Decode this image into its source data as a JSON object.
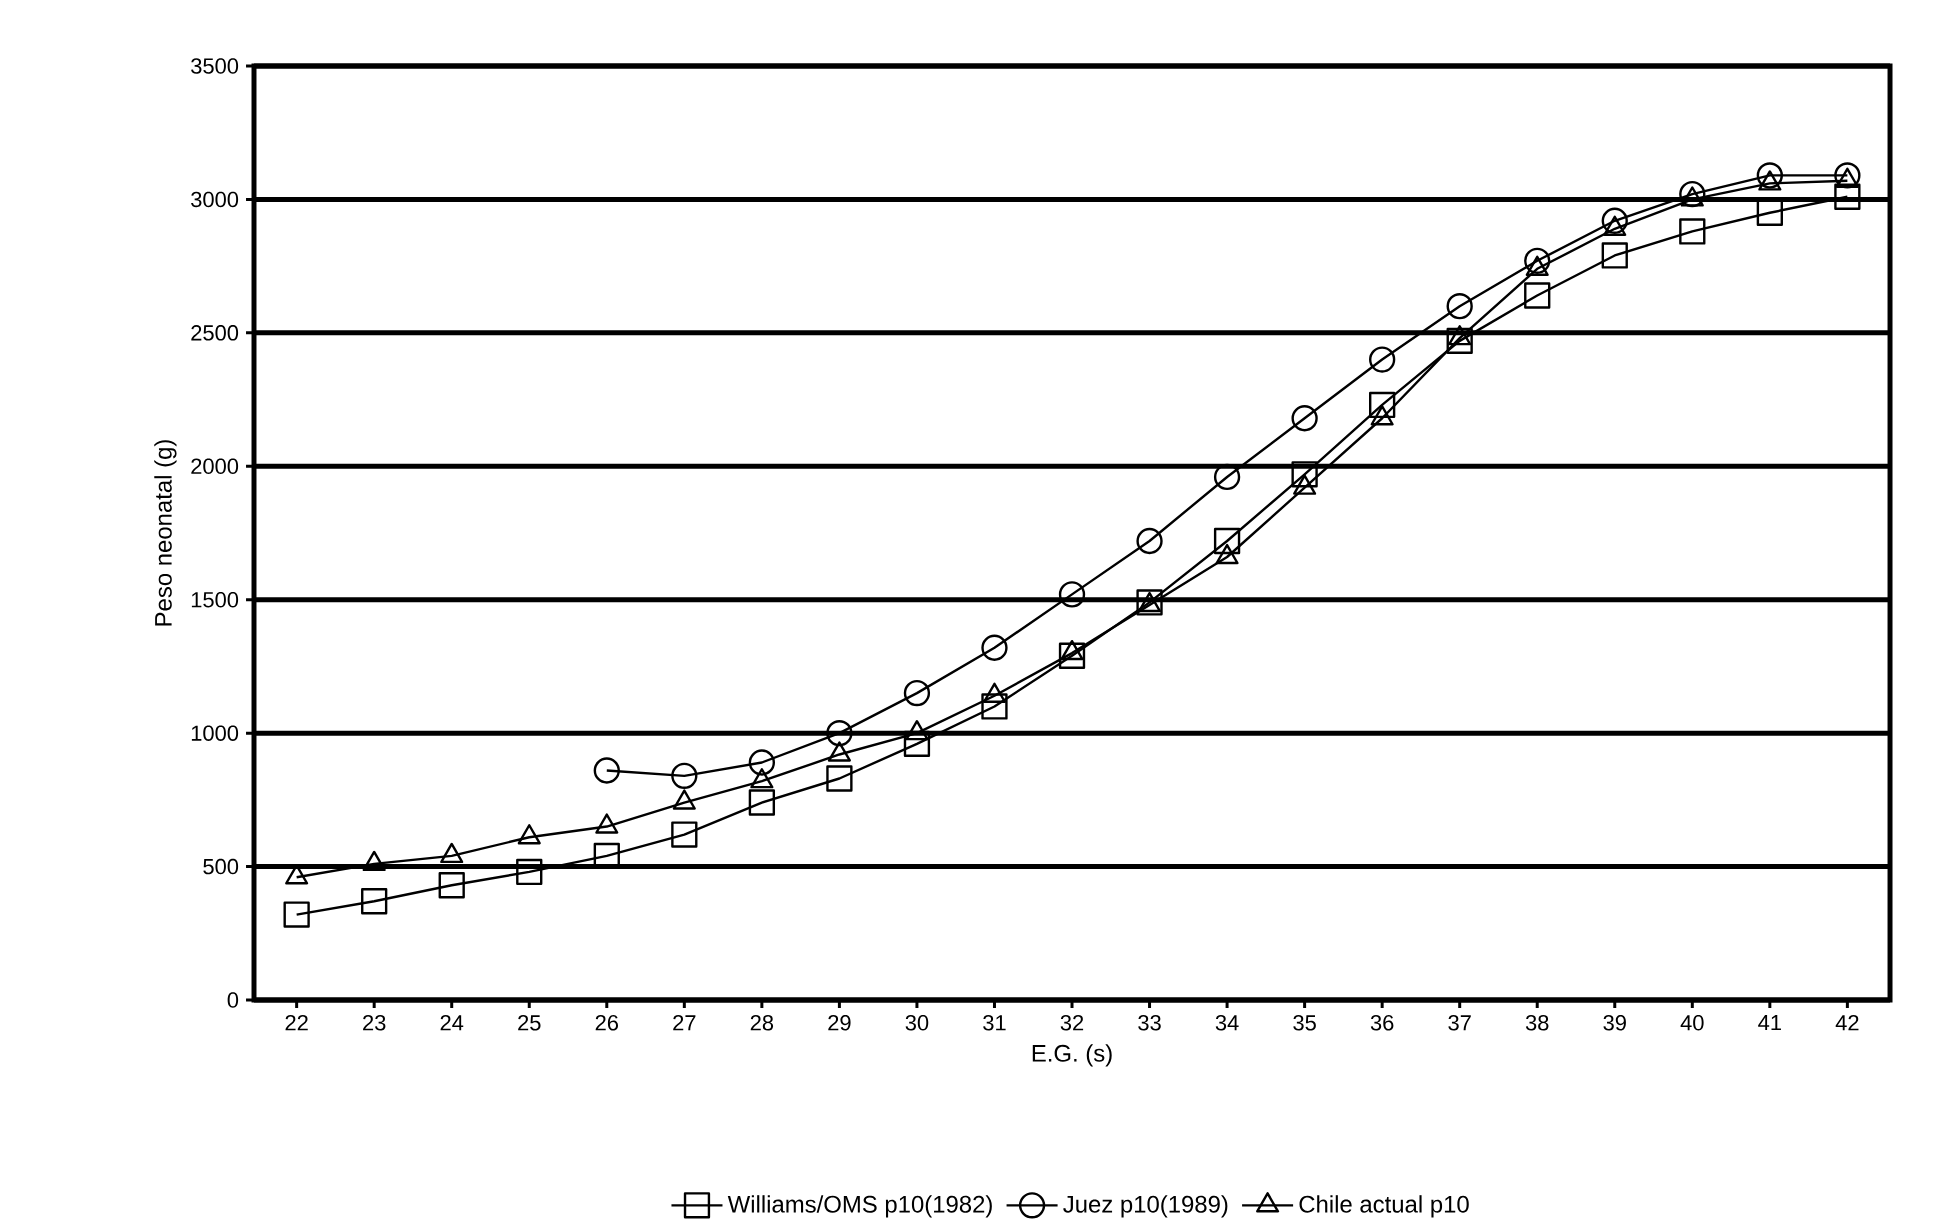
{
  "chart_data": {
    "type": "line",
    "xlabel": "E.G. (s)",
    "ylabel": "Peso neonatal (g)",
    "categories": [
      "22",
      "23",
      "24",
      "25",
      "26",
      "27",
      "28",
      "29",
      "30",
      "31",
      "32",
      "33",
      "34",
      "35",
      "36",
      "37",
      "38",
      "39",
      "40",
      "41",
      "42"
    ],
    "ylim": [
      0,
      3500
    ],
    "yticks": [
      0,
      500,
      1000,
      1500,
      2000,
      2500,
      3000,
      3500
    ],
    "grid": "y",
    "legend": "bottom",
    "line_style": "solid",
    "series": [
      {
        "name": "Williams/OMS p10(1982)",
        "color": "#000000",
        "marker": "square",
        "values": [
          320,
          370,
          430,
          480,
          540,
          620,
          740,
          830,
          960,
          1100,
          1290,
          1490,
          1720,
          1970,
          2230,
          2470,
          2640,
          2790,
          2880,
          2950,
          3010
        ]
      },
      {
        "name": "Juez p10(1989)",
        "color": "#000000",
        "marker": "circle",
        "values": [
          null,
          null,
          null,
          null,
          860,
          840,
          890,
          1000,
          1150,
          1320,
          1520,
          1720,
          1960,
          2180,
          2400,
          2600,
          2770,
          2920,
          3020,
          3090,
          3090
        ]
      },
      {
        "name": "Chile actual p10",
        "color": "#000000",
        "marker": "triangle",
        "values": [
          460,
          510,
          540,
          610,
          650,
          740,
          820,
          920,
          1000,
          1140,
          1300,
          1480,
          1660,
          1920,
          2180,
          2480,
          2740,
          2890,
          3000,
          3060,
          3070
        ]
      }
    ]
  }
}
